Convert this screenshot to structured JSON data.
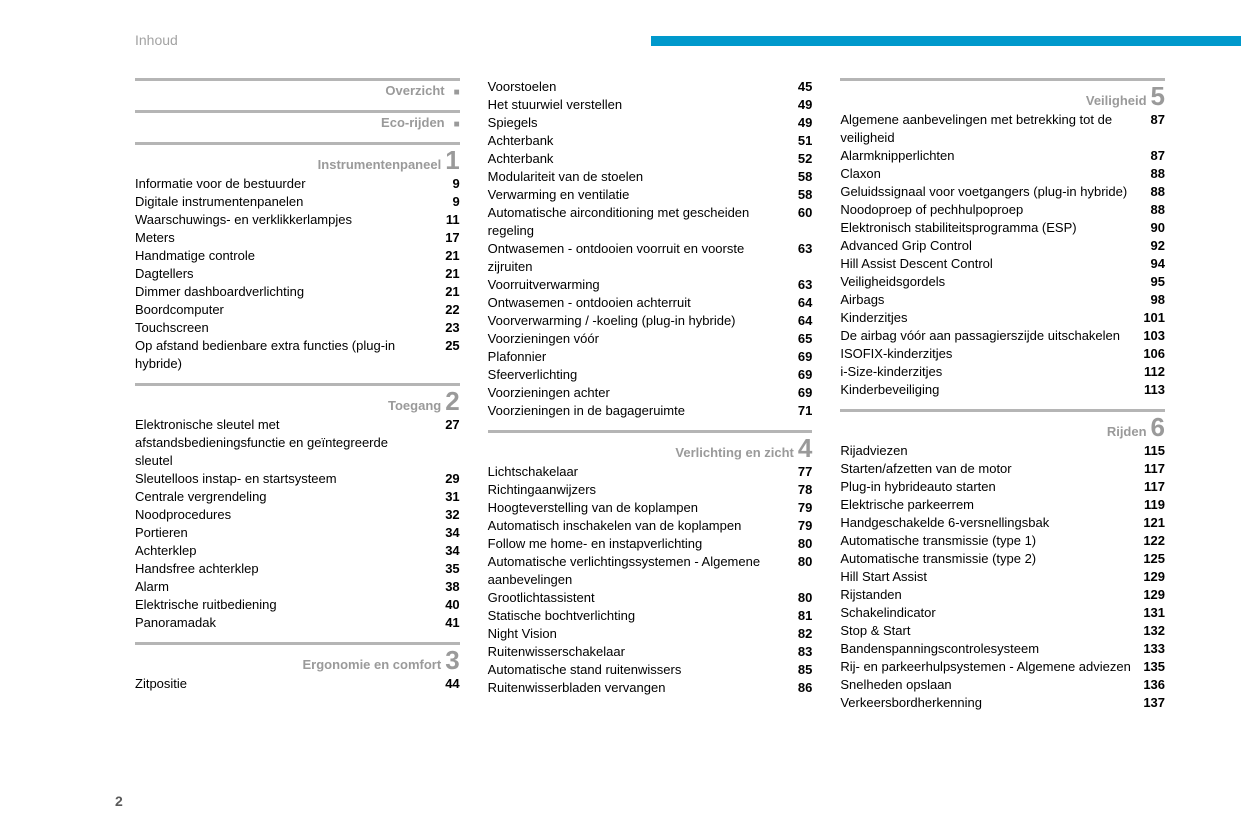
{
  "header": "Inhoud",
  "pageNumber": "2",
  "columns": [
    [
      {
        "type": "section",
        "title": "Overzicht",
        "num": "■"
      },
      {
        "type": "spacer"
      },
      {
        "type": "section",
        "title": "Eco-rijden",
        "num": "■"
      },
      {
        "type": "spacer"
      },
      {
        "type": "section",
        "title": "Instrumentenpaneel",
        "num": "1"
      },
      {
        "type": "row",
        "label": "Informatie voor de bestuurder",
        "page": "9"
      },
      {
        "type": "row",
        "label": "Digitale instrumentenpanelen",
        "page": "9"
      },
      {
        "type": "row",
        "label": "Waarschuwings- en verklikkerlampjes",
        "page": "11"
      },
      {
        "type": "row",
        "label": "Meters",
        "page": "17"
      },
      {
        "type": "row",
        "label": "Handmatige controle",
        "page": "21"
      },
      {
        "type": "row",
        "label": "Dagtellers",
        "page": "21"
      },
      {
        "type": "row",
        "label": "Dimmer dashboardverlichting",
        "page": "21"
      },
      {
        "type": "row",
        "label": "Boordcomputer",
        "page": "22"
      },
      {
        "type": "row",
        "label": "Touchscreen",
        "page": "23"
      },
      {
        "type": "row",
        "label": "Op afstand bedienbare extra functies (plug-in hybride)",
        "page": "25"
      },
      {
        "type": "spacer"
      },
      {
        "type": "section",
        "title": "Toegang",
        "num": "2"
      },
      {
        "type": "row",
        "label": "Elektronische sleutel met afstandsbedieningsfunctie en geïntegreerde sleutel",
        "page": "27"
      },
      {
        "type": "row",
        "label": "Sleutelloos instap- en startsysteem",
        "page": "29"
      },
      {
        "type": "row",
        "label": "Centrale vergrendeling",
        "page": "31"
      },
      {
        "type": "row",
        "label": "Noodprocedures",
        "page": "32"
      },
      {
        "type": "row",
        "label": "Portieren",
        "page": "34"
      },
      {
        "type": "row",
        "label": "Achterklep",
        "page": "34"
      },
      {
        "type": "row",
        "label": "Handsfree achterklep",
        "page": "35"
      },
      {
        "type": "row",
        "label": "Alarm",
        "page": "38"
      },
      {
        "type": "row",
        "label": "Elektrische ruitbediening",
        "page": "40"
      },
      {
        "type": "row",
        "label": "Panoramadak",
        "page": "41"
      },
      {
        "type": "spacer"
      },
      {
        "type": "section",
        "title": "Ergonomie en comfort",
        "num": "3"
      },
      {
        "type": "row",
        "label": "Zitpositie",
        "page": "44"
      }
    ],
    [
      {
        "type": "row",
        "label": "Voorstoelen",
        "page": "45"
      },
      {
        "type": "row",
        "label": "Het stuurwiel verstellen",
        "page": "49"
      },
      {
        "type": "row",
        "label": "Spiegels",
        "page": "49"
      },
      {
        "type": "row",
        "label": "Achterbank",
        "page": "51"
      },
      {
        "type": "row",
        "label": "Achterbank",
        "page": "52"
      },
      {
        "type": "row",
        "label": "Modulariteit van de stoelen",
        "page": "58"
      },
      {
        "type": "row",
        "label": "Verwarming en ventilatie",
        "page": "58"
      },
      {
        "type": "row",
        "label": "Automatische airconditioning met gescheiden regeling",
        "page": "60"
      },
      {
        "type": "row",
        "label": "Ontwasemen - ontdooien voorruit en voorste zijruiten",
        "page": "63"
      },
      {
        "type": "row",
        "label": "Voorruitverwarming",
        "page": "63"
      },
      {
        "type": "row",
        "label": "Ontwasemen - ontdooien achterruit",
        "page": "64"
      },
      {
        "type": "row",
        "label": "Voorverwarming / -koeling (plug-in hybride)",
        "page": "64"
      },
      {
        "type": "row",
        "label": "Voorzieningen vóór",
        "page": "65"
      },
      {
        "type": "row",
        "label": "Plafonnier",
        "page": "69"
      },
      {
        "type": "row",
        "label": "Sfeerverlichting",
        "page": "69"
      },
      {
        "type": "row",
        "label": "Voorzieningen achter",
        "page": "69"
      },
      {
        "type": "row",
        "label": "Voorzieningen in de bagageruimte",
        "page": "71"
      },
      {
        "type": "spacer"
      },
      {
        "type": "section",
        "title": "Verlichting en zicht",
        "num": "4"
      },
      {
        "type": "row",
        "label": "Lichtschakelaar",
        "page": "77"
      },
      {
        "type": "row",
        "label": "Richtingaanwijzers",
        "page": "78"
      },
      {
        "type": "row",
        "label": "Hoogteverstelling van de koplampen",
        "page": "79"
      },
      {
        "type": "row",
        "label": "Automatisch inschakelen van de koplampen",
        "page": "79"
      },
      {
        "type": "row",
        "label": "Follow me home- en instapverlichting",
        "page": "80"
      },
      {
        "type": "row",
        "label": "Automatische verlichtingssystemen - Algemene aanbevelingen",
        "page": "80"
      },
      {
        "type": "row",
        "label": "Grootlichtassistent",
        "page": "80"
      },
      {
        "type": "row",
        "label": "Statische bochtverlichting",
        "page": "81"
      },
      {
        "type": "row",
        "label": "Night Vision",
        "page": "82"
      },
      {
        "type": "row",
        "label": "Ruitenwisserschakelaar",
        "page": "83"
      },
      {
        "type": "row",
        "label": "Automatische stand ruitenwissers",
        "page": "85"
      },
      {
        "type": "row",
        "label": "Ruitenwisserbladen vervangen",
        "page": "86"
      }
    ],
    [
      {
        "type": "section",
        "title": "Veiligheid",
        "num": "5"
      },
      {
        "type": "row",
        "label": "Algemene aanbevelingen met betrekking tot de veiligheid",
        "page": "87"
      },
      {
        "type": "row",
        "label": "Alarmknipperlichten",
        "page": "87"
      },
      {
        "type": "row",
        "label": "Claxon",
        "page": "88"
      },
      {
        "type": "row",
        "label": "Geluidssignaal voor voetgangers (plug-in hybride)",
        "page": "88"
      },
      {
        "type": "row",
        "label": "Noodoproep of pechhulpoproep",
        "page": "88"
      },
      {
        "type": "row",
        "label": "Elektronisch stabiliteitsprogramma (ESP)",
        "page": "90"
      },
      {
        "type": "row",
        "label": "Advanced Grip Control",
        "page": "92"
      },
      {
        "type": "row",
        "label": "Hill Assist Descent Control",
        "page": "94"
      },
      {
        "type": "row",
        "label": "Veiligheidsgordels",
        "page": "95"
      },
      {
        "type": "row",
        "label": "Airbags",
        "page": "98"
      },
      {
        "type": "row",
        "label": "Kinderzitjes",
        "page": "101"
      },
      {
        "type": "row",
        "label": "De airbag vóór aan passagierszijde uitschakelen",
        "page": "103"
      },
      {
        "type": "row",
        "label": "ISOFIX-kinderzitjes",
        "page": "106"
      },
      {
        "type": "row",
        "label": "i-Size-kinderzitjes",
        "page": "112"
      },
      {
        "type": "row",
        "label": "Kinderbeveiliging",
        "page": "113"
      },
      {
        "type": "spacer"
      },
      {
        "type": "section",
        "title": "Rijden",
        "num": "6"
      },
      {
        "type": "row",
        "label": "Rijadviezen",
        "page": "115"
      },
      {
        "type": "row",
        "label": "Starten/afzetten van de motor",
        "page": "117"
      },
      {
        "type": "row",
        "label": "Plug-in hybrideauto starten",
        "page": "117"
      },
      {
        "type": "row",
        "label": "Elektrische parkeerrem",
        "page": "119"
      },
      {
        "type": "row",
        "label": "Handgeschakelde 6-versnellingsbak",
        "page": "121"
      },
      {
        "type": "row",
        "label": "Automatische transmissie (type 1)",
        "page": "122"
      },
      {
        "type": "row",
        "label": "Automatische transmissie (type 2)",
        "page": "125"
      },
      {
        "type": "row",
        "label": "Hill Start Assist",
        "page": "129"
      },
      {
        "type": "row",
        "label": "Rijstanden",
        "page": "129"
      },
      {
        "type": "row",
        "label": "Schakelindicator",
        "page": "131"
      },
      {
        "type": "row",
        "label": "Stop & Start",
        "page": "132"
      },
      {
        "type": "row",
        "label": "Bandenspanningscontrolesysteem",
        "page": "133"
      },
      {
        "type": "row",
        "label": "Rij- en parkeerhulpsystemen - Algemene adviezen",
        "page": "135"
      },
      {
        "type": "row",
        "label": "Snelheden opslaan",
        "page": "136"
      },
      {
        "type": "row",
        "label": "Verkeersbordherkenning",
        "page": "137"
      }
    ]
  ]
}
